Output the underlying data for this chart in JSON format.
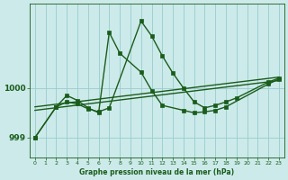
{
  "bg_color": "#cceaea",
  "grid_color": "#99cccc",
  "line_color": "#1a5c1a",
  "text_color": "#1a5c1a",
  "xlabel": "Graphe pression niveau de la mer (hPa)",
  "yticks": [
    999,
    1000
  ],
  "xticks": [
    0,
    1,
    2,
    3,
    4,
    5,
    6,
    7,
    8,
    9,
    10,
    11,
    12,
    13,
    14,
    15,
    16,
    17,
    18,
    19,
    20,
    21,
    22,
    23
  ],
  "ylim": [
    998.6,
    1001.7
  ],
  "xlim": [
    -0.5,
    23.5
  ],
  "series": [
    {
      "x": [
        0,
        23
      ],
      "y": [
        999.55,
        1000.15
      ],
      "marker": null,
      "linewidth": 1.0
    },
    {
      "x": [
        0,
        23
      ],
      "y": [
        999.62,
        1000.22
      ],
      "marker": null,
      "linewidth": 1.0
    },
    {
      "x": [
        0,
        2,
        3,
        4,
        5,
        6,
        7,
        10,
        11,
        12,
        13,
        14,
        15,
        16,
        17,
        18,
        19,
        22,
        23
      ],
      "y": [
        999.0,
        999.62,
        999.72,
        999.68,
        999.58,
        999.52,
        999.6,
        1001.35,
        1001.05,
        1000.65,
        1000.3,
        1000.0,
        999.72,
        999.6,
        999.65,
        999.72,
        999.8,
        1000.12,
        1000.2
      ],
      "marker": "s",
      "markersize": 2.5,
      "linewidth": 1.0
    },
    {
      "x": [
        0,
        2,
        3,
        4,
        5,
        6,
        7,
        8,
        10,
        11,
        12,
        14,
        15,
        16,
        17,
        18,
        22,
        23
      ],
      "y": [
        999.0,
        999.62,
        999.85,
        999.75,
        999.6,
        999.5,
        1001.12,
        1000.7,
        1000.32,
        999.95,
        999.65,
        999.55,
        999.5,
        999.52,
        999.55,
        999.62,
        1000.08,
        1000.18
      ],
      "marker": "s",
      "markersize": 2.5,
      "linewidth": 1.0
    }
  ]
}
